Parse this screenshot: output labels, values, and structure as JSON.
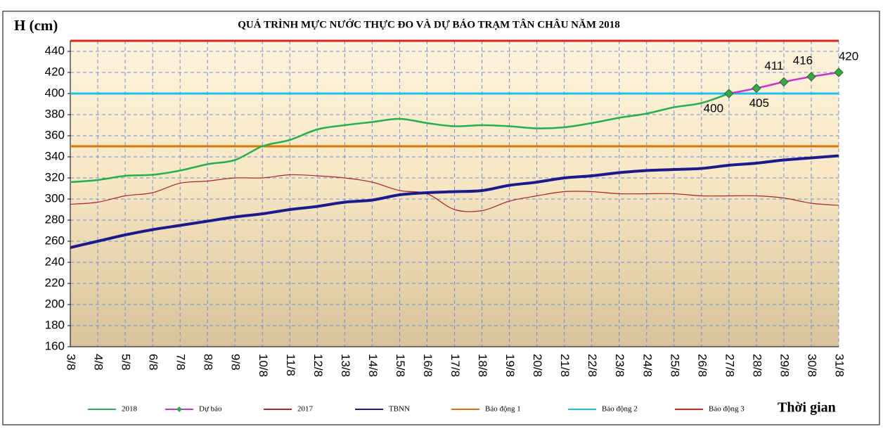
{
  "chart_data": {
    "type": "line",
    "title": "QUÁ TRÌNH MỰC NƯỚC THỰC ĐO VÀ DỰ BÁO TRẠM TÂN CHÂU NĂM 2018",
    "y_label": "H (cm)",
    "x_label": "Thời gian",
    "categories": [
      "3/8",
      "4/8",
      "5/8",
      "6/8",
      "7/8",
      "8/8",
      "9/8",
      "10/8",
      "11/8",
      "12/8",
      "13/8",
      "14/8",
      "15/8",
      "16/8",
      "17/8",
      "18/8",
      "19/8",
      "20/8",
      "21/8",
      "22/8",
      "23/8",
      "24/8",
      "25/8",
      "26/8",
      "27/8",
      "28/8",
      "29/8",
      "30/8",
      "31/8"
    ],
    "series": [
      {
        "name": "2018",
        "color": "#22b14c",
        "values": [
          316,
          318,
          322,
          323,
          327,
          333,
          337,
          350,
          356,
          366,
          370,
          373,
          376,
          372,
          369,
          370,
          369,
          367,
          368,
          372,
          377,
          381,
          387,
          391,
          400,
          null,
          null,
          null,
          null
        ]
      },
      {
        "name": "Dự báo",
        "color": "#cc33cc",
        "marker_color": "#33aa44",
        "values": [
          null,
          null,
          null,
          null,
          null,
          null,
          null,
          null,
          null,
          null,
          null,
          null,
          null,
          null,
          null,
          null,
          null,
          null,
          null,
          null,
          null,
          null,
          null,
          null,
          400,
          405,
          411,
          416,
          420
        ]
      },
      {
        "name": "2017",
        "color": "#b22222",
        "values": [
          295,
          297,
          303,
          306,
          315,
          317,
          320,
          320,
          323,
          322,
          320,
          316,
          308,
          305,
          290,
          289,
          298,
          303,
          307,
          307,
          305,
          305,
          305,
          303,
          303,
          303,
          301,
          296,
          294
        ]
      },
      {
        "name": "TBNN",
        "color": "#1a1a8c",
        "values": [
          254,
          260,
          266,
          271,
          275,
          279,
          283,
          286,
          290,
          293,
          297,
          299,
          304,
          306,
          307,
          308,
          313,
          316,
          320,
          322,
          325,
          327,
          328,
          329,
          332,
          334,
          337,
          339,
          341
        ]
      }
    ],
    "thresholds": [
      {
        "name": "Báo động 1",
        "color": "#e07000",
        "value": 350
      },
      {
        "name": "Báo động 2",
        "color": "#1ec0f0",
        "value": 400
      },
      {
        "name": "Báo động 3",
        "color": "#e02020",
        "value": 450
      }
    ],
    "ylim": [
      160,
      450
    ],
    "yticks": [
      160,
      180,
      200,
      220,
      240,
      260,
      280,
      300,
      320,
      340,
      360,
      380,
      400,
      420,
      440
    ],
    "grid": true
  }
}
